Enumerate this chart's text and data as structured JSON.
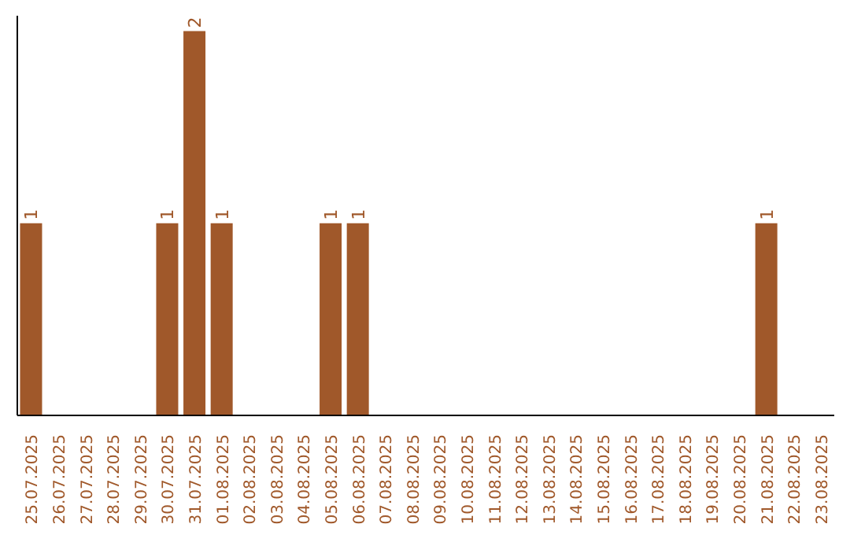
{
  "chart_data": {
    "type": "bar",
    "categories": [
      "25.07.2025",
      "26.07.2025",
      "27.07.2025",
      "28.07.2025",
      "29.07.2025",
      "30.07.2025",
      "31.07.2025",
      "01.08.2025",
      "02.08.2025",
      "03.08.2025",
      "04.08.2025",
      "05.08.2025",
      "06.08.2025",
      "07.08.2025",
      "08.08.2025",
      "09.08.2025",
      "10.08.2025",
      "11.08.2025",
      "12.08.2025",
      "13.08.2025",
      "14.08.2025",
      "15.08.2025",
      "16.08.2025",
      "17.08.2025",
      "18.08.2025",
      "19.08.2025",
      "20.08.2025",
      "21.08.2025",
      "22.08.2025",
      "23.08.2025"
    ],
    "values": [
      1,
      0,
      0,
      0,
      0,
      1,
      2,
      1,
      0,
      0,
      0,
      1,
      1,
      0,
      0,
      0,
      0,
      0,
      0,
      0,
      0,
      0,
      0,
      0,
      0,
      0,
      0,
      1,
      0,
      0
    ],
    "color": "#a0582a",
    "value_labels": [
      "1",
      null,
      null,
      null,
      null,
      "1",
      "2",
      "1",
      null,
      null,
      null,
      "1",
      "1",
      null,
      null,
      null,
      null,
      null,
      null,
      null,
      null,
      null,
      null,
      null,
      null,
      null,
      null,
      "1",
      null,
      null
    ],
    "grid": false,
    "legend": false
  }
}
